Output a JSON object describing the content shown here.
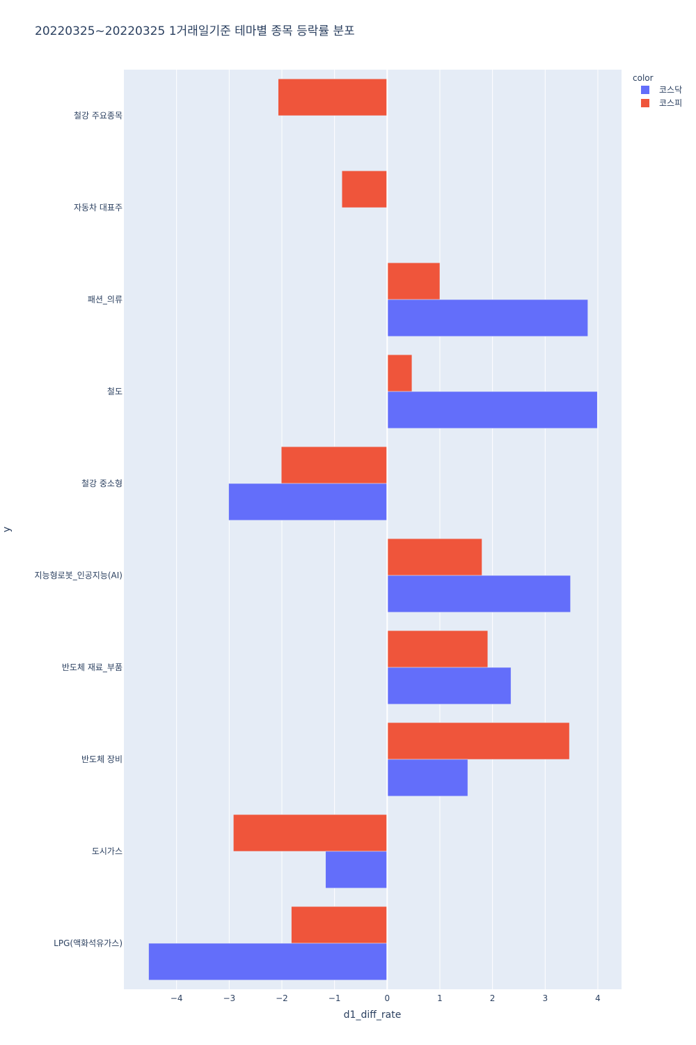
{
  "chart_data": {
    "type": "bar",
    "orientation": "horizontal",
    "title": "20220325~20220325 1거래일기준 테마별 종목 등락률 분포",
    "xlabel": "d1_diff_rate",
    "ylabel": "y",
    "xlim": [
      -5.0,
      4.45
    ],
    "xticks": [
      -4,
      -3,
      -2,
      -1,
      0,
      1,
      2,
      3,
      4
    ],
    "xtick_labels": [
      "−4",
      "−3",
      "−2",
      "−1",
      "0",
      "1",
      "2",
      "3",
      "4"
    ],
    "grid": true,
    "legend_title": "color",
    "legend_position": "top-right",
    "categories": [
      "철강 주요종목",
      "자동차 대표주",
      "패션_의류",
      "철도",
      "철강 중소형",
      "지능형로봇_인공지능(AI)",
      "반도체 재료_부품",
      "반도체 장비",
      "도시가스",
      "LPG(액화석유가스)"
    ],
    "series": [
      {
        "name": "코스닥",
        "color": "#636efa",
        "values": [
          null,
          null,
          3.81,
          3.99,
          -3.01,
          3.48,
          2.35,
          1.53,
          -1.17,
          -4.53
        ]
      },
      {
        "name": "코스피",
        "color": "#ef553b",
        "values": [
          -2.07,
          -0.86,
          1.0,
          0.47,
          -2.01,
          1.8,
          1.91,
          3.46,
          -2.92,
          -1.82
        ]
      }
    ]
  }
}
